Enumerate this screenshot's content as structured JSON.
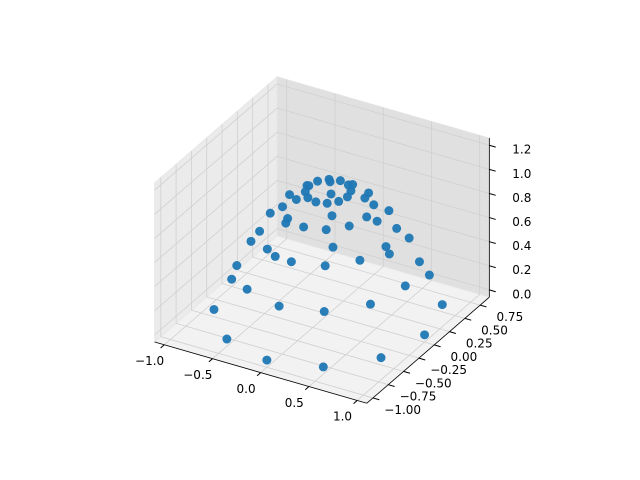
{
  "chart_data": {
    "type": "scatter3d",
    "color": "#1f77b4",
    "x": [
      0.2,
      0.173,
      0.1,
      0,
      -0.1,
      -0.173,
      -0.2,
      -0.173,
      -0.1,
      0,
      0.1,
      0.173,
      0.4,
      0.346,
      0.2,
      0,
      -0.2,
      -0.346,
      -0.4,
      -0.346,
      -0.2,
      0,
      0.2,
      0.346,
      0.6,
      0.52,
      0.3,
      0,
      -0.3,
      -0.52,
      -0.6,
      -0.52,
      -0.3,
      0,
      0.3,
      0.52,
      0.8,
      0.693,
      0.4,
      0,
      -0.4,
      -0.693,
      -0.8,
      -0.693,
      -0.4,
      0,
      0.4,
      0.693,
      1,
      0.866,
      0.5,
      0,
      -0.5,
      -0.866,
      -1,
      -0.866,
      -0.5,
      0,
      0.5,
      0.866
    ],
    "y": [
      0,
      0.1,
      0.173,
      0.2,
      0.173,
      0.1,
      0,
      -0.1,
      -0.173,
      -0.2,
      -0.173,
      -0.1,
      0,
      0.2,
      0.346,
      0.4,
      0.346,
      0.2,
      0,
      -0.2,
      -0.346,
      -0.4,
      -0.346,
      -0.2,
      0,
      0.3,
      0.52,
      0.6,
      0.52,
      0.3,
      0,
      -0.3,
      -0.52,
      -0.6,
      -0.52,
      -0.3,
      0,
      0.4,
      0.693,
      0.8,
      0.693,
      0.4,
      0,
      -0.4,
      -0.693,
      -0.8,
      -0.693,
      -0.4,
      0,
      0.5,
      0.866,
      1,
      0.866,
      0.5,
      0,
      -0.5,
      -0.866,
      -1,
      -0.866,
      -0.5
    ],
    "z": [
      0.96,
      0.96,
      0.96,
      0.96,
      0.96,
      0.96,
      0.96,
      0.96,
      0.96,
      0.96,
      0.96,
      0.96,
      0.84,
      0.84,
      0.84,
      0.84,
      0.84,
      0.84,
      0.84,
      0.84,
      0.84,
      0.84,
      0.84,
      0.84,
      0.64,
      0.64,
      0.64,
      0.64,
      0.64,
      0.64,
      0.64,
      0.64,
      0.64,
      0.64,
      0.64,
      0.64,
      0.36,
      0.36,
      0.36,
      0.36,
      0.36,
      0.36,
      0.36,
      0.36,
      0.36,
      0.36,
      0.36,
      0.36,
      0,
      0,
      0,
      0,
      0,
      0,
      0,
      0,
      0,
      0,
      0,
      0
    ],
    "xlim": [
      -1.1,
      1.1
    ],
    "ylim": [
      -1.1,
      0.9
    ],
    "zlim": [
      -0.06,
      1.26
    ],
    "xticks": [
      {
        "value": -1,
        "label": "−1.0"
      },
      {
        "value": -0.5,
        "label": "−0.5"
      },
      {
        "value": 0,
        "label": "0.0"
      },
      {
        "value": 0.5,
        "label": "0.5"
      },
      {
        "value": 1,
        "label": "1.0"
      }
    ],
    "yticks": [
      {
        "value": -1,
        "label": "−1.00"
      },
      {
        "value": -0.75,
        "label": "−0.75"
      },
      {
        "value": -0.5,
        "label": "−0.50"
      },
      {
        "value": -0.25,
        "label": "−0.25"
      },
      {
        "value": 0,
        "label": "0.00"
      },
      {
        "value": 0.25,
        "label": "0.25"
      },
      {
        "value": 0.5,
        "label": "0.50"
      },
      {
        "value": 0.75,
        "label": "0.75"
      }
    ],
    "zticks": [
      {
        "value": 0,
        "label": "0.0"
      },
      0.2,
      0.4,
      0.6,
      0.8,
      {
        "value": 1,
        "label": "1.0"
      },
      1.2
    ],
    "grid": true
  }
}
